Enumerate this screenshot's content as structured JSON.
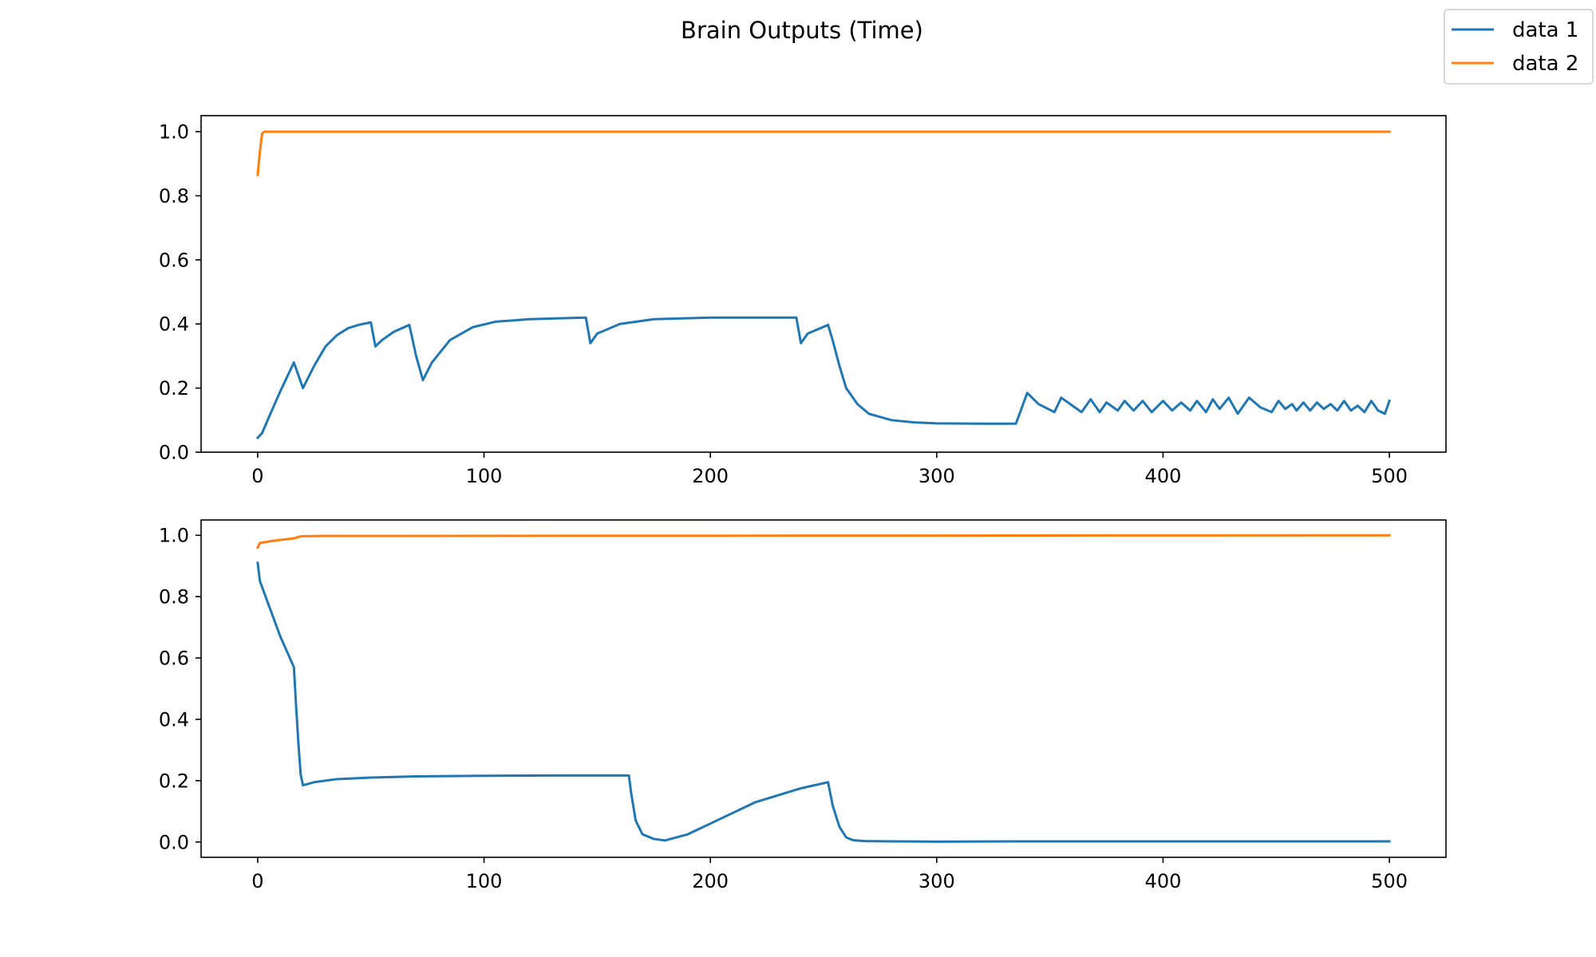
{
  "figure": {
    "title": "Brain Outputs (Time)"
  },
  "legend": {
    "placement": "top-right",
    "entries": [
      {
        "label": "data 1",
        "color": "#1f77b4"
      },
      {
        "label": "data 2",
        "color": "#ff7f0e"
      }
    ]
  },
  "chart_data": [
    {
      "type": "line",
      "title": "",
      "xlabel": "",
      "ylabel": "",
      "xlim": [
        -25,
        525
      ],
      "ylim": [
        0,
        1.05
      ],
      "xticks": [
        0,
        100,
        200,
        300,
        400,
        500
      ],
      "xtick_labels": [
        "0",
        "100",
        "200",
        "300",
        "400",
        "500"
      ],
      "yticks": [
        0.0,
        0.2,
        0.4,
        0.6,
        0.8,
        1.0
      ],
      "ytick_labels": [
        "0.0",
        "0.2",
        "0.4",
        "0.6",
        "0.8",
        "1.0"
      ],
      "grid": false,
      "series": [
        {
          "name": "data 1",
          "color": "#1f77b4",
          "x": [
            0,
            2,
            5,
            10,
            16,
            20,
            25,
            30,
            35,
            40,
            45,
            50,
            52,
            55,
            60,
            67,
            70,
            73,
            77,
            85,
            95,
            105,
            120,
            135,
            145,
            147,
            150,
            160,
            175,
            200,
            220,
            238,
            240,
            243,
            252,
            254,
            257,
            260,
            265,
            270,
            280,
            290,
            300,
            320,
            335,
            340,
            345,
            352,
            355,
            360,
            364,
            368,
            372,
            375,
            380,
            383,
            387,
            391,
            395,
            400,
            404,
            408,
            412,
            415,
            419,
            422,
            425,
            429,
            433,
            438,
            443,
            448,
            451,
            454,
            457,
            459,
            462,
            465,
            468,
            471,
            474,
            477,
            480,
            483,
            486,
            489,
            492,
            495,
            498,
            500
          ],
          "y": [
            0.045,
            0.06,
            0.11,
            0.19,
            0.28,
            0.2,
            0.27,
            0.33,
            0.365,
            0.387,
            0.398,
            0.405,
            0.33,
            0.35,
            0.375,
            0.397,
            0.3,
            0.225,
            0.28,
            0.35,
            0.39,
            0.407,
            0.415,
            0.418,
            0.42,
            0.34,
            0.37,
            0.4,
            0.415,
            0.42,
            0.42,
            0.42,
            0.34,
            0.37,
            0.397,
            0.35,
            0.27,
            0.2,
            0.15,
            0.12,
            0.1,
            0.093,
            0.09,
            0.089,
            0.089,
            0.185,
            0.15,
            0.125,
            0.17,
            0.145,
            0.125,
            0.165,
            0.125,
            0.155,
            0.13,
            0.16,
            0.13,
            0.16,
            0.125,
            0.16,
            0.13,
            0.155,
            0.13,
            0.16,
            0.125,
            0.165,
            0.135,
            0.17,
            0.12,
            0.17,
            0.14,
            0.125,
            0.16,
            0.135,
            0.15,
            0.13,
            0.155,
            0.13,
            0.155,
            0.135,
            0.15,
            0.13,
            0.16,
            0.13,
            0.145,
            0.125,
            0.16,
            0.13,
            0.12,
            0.16
          ]
        },
        {
          "name": "data 2",
          "color": "#ff7f0e",
          "x": [
            0,
            1,
            2,
            3,
            500
          ],
          "y": [
            0.865,
            0.94,
            0.995,
            1.0,
            1.0
          ]
        }
      ]
    },
    {
      "type": "line",
      "title": "",
      "xlabel": "",
      "ylabel": "",
      "xlim": [
        -25,
        525
      ],
      "ylim": [
        -0.05,
        1.05
      ],
      "xticks": [
        0,
        100,
        200,
        300,
        400,
        500
      ],
      "xtick_labels": [
        "0",
        "100",
        "200",
        "300",
        "400",
        "500"
      ],
      "yticks": [
        0.0,
        0.2,
        0.4,
        0.6,
        0.8,
        1.0
      ],
      "ytick_labels": [
        "0.0",
        "0.2",
        "0.4",
        "0.6",
        "0.8",
        "1.0"
      ],
      "grid": false,
      "series": [
        {
          "name": "data 1",
          "color": "#1f77b4",
          "x": [
            0,
            1,
            5,
            10,
            16,
            17,
            18,
            19,
            20,
            25,
            35,
            50,
            70,
            100,
            130,
            164,
            165,
            167,
            170,
            175,
            180,
            190,
            200,
            220,
            240,
            252,
            254,
            257,
            260,
            263,
            268,
            280,
            300,
            340,
            400,
            450,
            500
          ],
          "y": [
            0.91,
            0.85,
            0.77,
            0.67,
            0.57,
            0.44,
            0.32,
            0.22,
            0.185,
            0.195,
            0.205,
            0.21,
            0.214,
            0.216,
            0.217,
            0.217,
            0.16,
            0.07,
            0.025,
            0.01,
            0.005,
            0.025,
            0.06,
            0.13,
            0.175,
            0.195,
            0.12,
            0.05,
            0.015,
            0.006,
            0.003,
            0.002,
            0.001,
            0.002,
            0.002,
            0.002,
            0.002
          ]
        },
        {
          "name": "data 2",
          "color": "#ff7f0e",
          "x": [
            0,
            1,
            5,
            10,
            16,
            18,
            20,
            30,
            500
          ],
          "y": [
            0.96,
            0.975,
            0.98,
            0.985,
            0.99,
            0.995,
            0.997,
            0.998,
            1.0
          ]
        }
      ]
    }
  ]
}
